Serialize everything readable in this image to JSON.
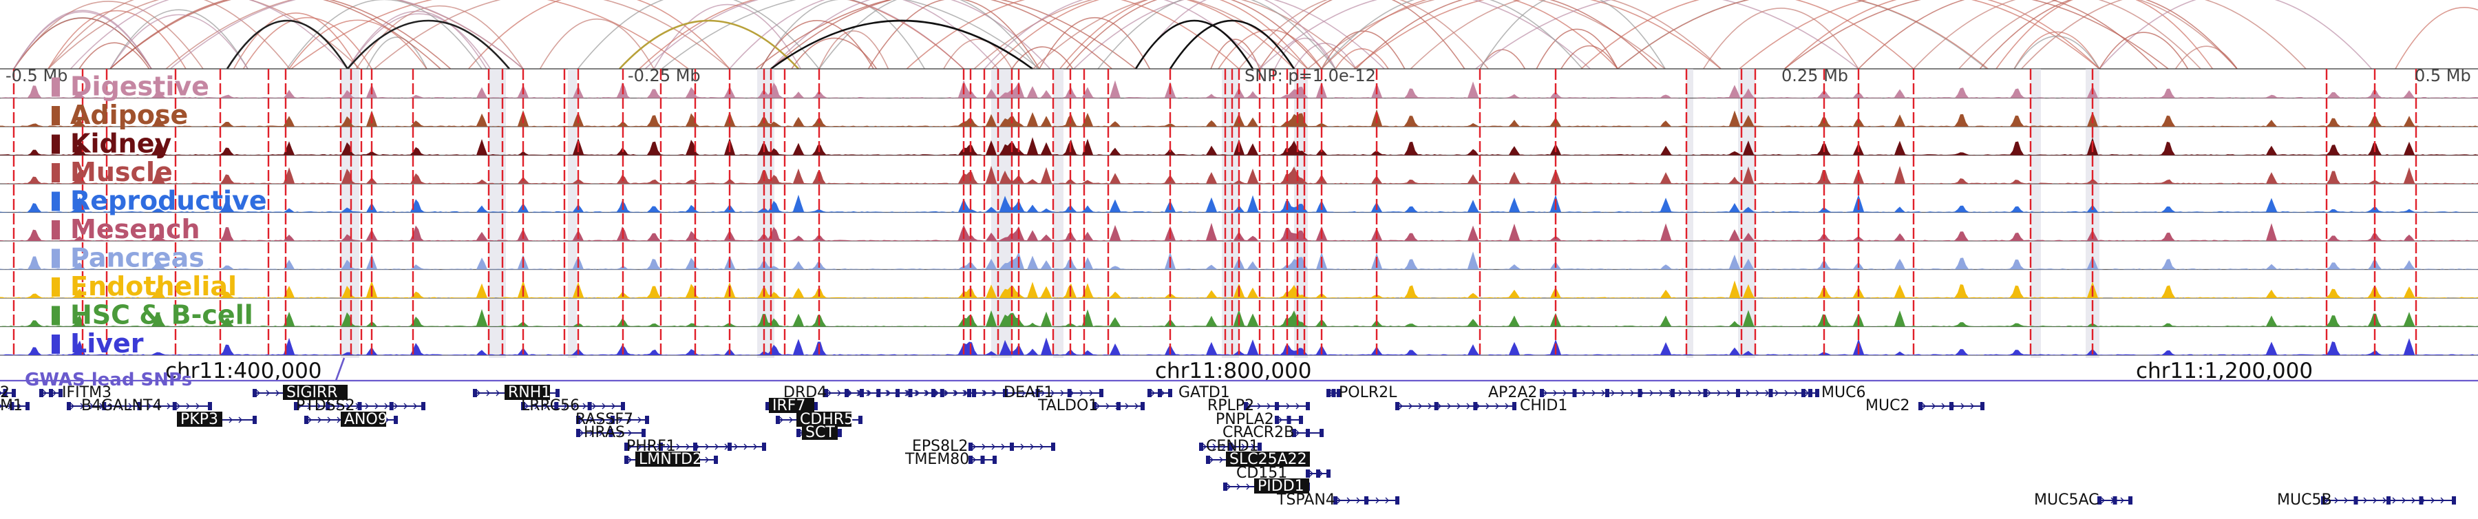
{
  "genome_view": {
    "ruler_labels": [
      "-0.5 Mb",
      "-0.25 Mb",
      "0.25 Mb",
      "0.5 Mb"
    ],
    "snp_label": "SNP: p=1.0e-12",
    "coordinate_labels": [
      "chr11:400,000",
      "chr11:800,000",
      "chr11:1,200,000"
    ],
    "gwas_label": "GWAS lead SNPs",
    "tracks": [
      {
        "name": "Digestive",
        "color": "#c586a2"
      },
      {
        "name": "Adipose",
        "color": "#a0522d"
      },
      {
        "name": "Kidney",
        "color": "#6b0f12"
      },
      {
        "name": "Muscle",
        "color": "#b04a4a"
      },
      {
        "name": "Reproductive",
        "color": "#2f6de0"
      },
      {
        "name": "Mesench",
        "color": "#b8546f"
      },
      {
        "name": "Pancreas",
        "color": "#8fa6e0"
      },
      {
        "name": "Endothelial",
        "color": "#f2bb0c"
      },
      {
        "name": "HSC & B-cell",
        "color": "#4a9a3a"
      },
      {
        "name": "Liver",
        "color": "#3b3bd6"
      }
    ],
    "genes": [
      {
        "name": "2"
      },
      {
        "name": "M1"
      },
      {
        "name": "IFITM3"
      },
      {
        "name": "B4GALNT4"
      },
      {
        "name": "PKP3"
      },
      {
        "name": "SIGIRR"
      },
      {
        "name": "PTDSS2"
      },
      {
        "name": "ANO9"
      },
      {
        "name": "RNH1"
      },
      {
        "name": "LRRC56"
      },
      {
        "name": "RASSF7"
      },
      {
        "name": "HRAS"
      },
      {
        "name": "PHRF1"
      },
      {
        "name": "LMNTD2"
      },
      {
        "name": "DRD4"
      },
      {
        "name": "IRF7"
      },
      {
        "name": "CDHR5"
      },
      {
        "name": "SCT"
      },
      {
        "name": "DEAF1"
      },
      {
        "name": "TALDO1"
      },
      {
        "name": "EPS8L2"
      },
      {
        "name": "TMEM80"
      },
      {
        "name": "GATD1"
      },
      {
        "name": "RPLP2"
      },
      {
        "name": "PNPLA2"
      },
      {
        "name": "CRACR2B"
      },
      {
        "name": "CEND1"
      },
      {
        "name": "SLC25A22"
      },
      {
        "name": "CD151"
      },
      {
        "name": "PIDD1"
      },
      {
        "name": "TSPAN4"
      },
      {
        "name": "POLR2L"
      },
      {
        "name": "AP2A2"
      },
      {
        "name": "CHID1"
      },
      {
        "name": "MUC6"
      },
      {
        "name": "MUC2"
      },
      {
        "name": "MUC5AC"
      },
      {
        "name": "MUC5B"
      }
    ],
    "colors": {
      "snp_marker": "#e0202a",
      "region_shade": "#d9d9e3",
      "gwas": "#6a5acd",
      "gene": "#1a1a80"
    }
  }
}
